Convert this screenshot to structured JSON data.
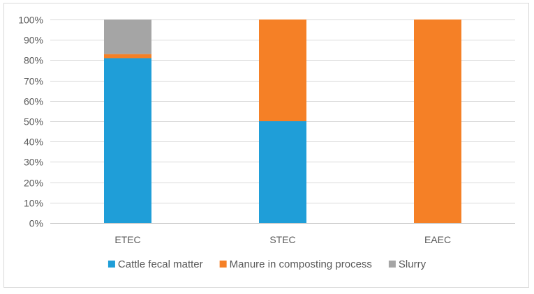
{
  "chart_data": {
    "type": "bar",
    "stacked": true,
    "percent": true,
    "categories": [
      "ETEC",
      "STEC",
      "EAEC"
    ],
    "series": [
      {
        "name": "Cattle fecal matter",
        "color": "#1f9ed8",
        "values": [
          81,
          50,
          0
        ]
      },
      {
        "name": "Manure in composting process",
        "color": "#f58026",
        "values": [
          2,
          50,
          100
        ]
      },
      {
        "name": "Slurry",
        "color": "#a5a5a5",
        "values": [
          17,
          0,
          0
        ]
      }
    ],
    "ylim": [
      0,
      100
    ],
    "yticks": [
      "0%",
      "10%",
      "20%",
      "30%",
      "40%",
      "50%",
      "60%",
      "70%",
      "80%",
      "90%",
      "100%"
    ],
    "grid": true,
    "legend": "bottom",
    "title": "",
    "xlabel": "",
    "ylabel": ""
  }
}
